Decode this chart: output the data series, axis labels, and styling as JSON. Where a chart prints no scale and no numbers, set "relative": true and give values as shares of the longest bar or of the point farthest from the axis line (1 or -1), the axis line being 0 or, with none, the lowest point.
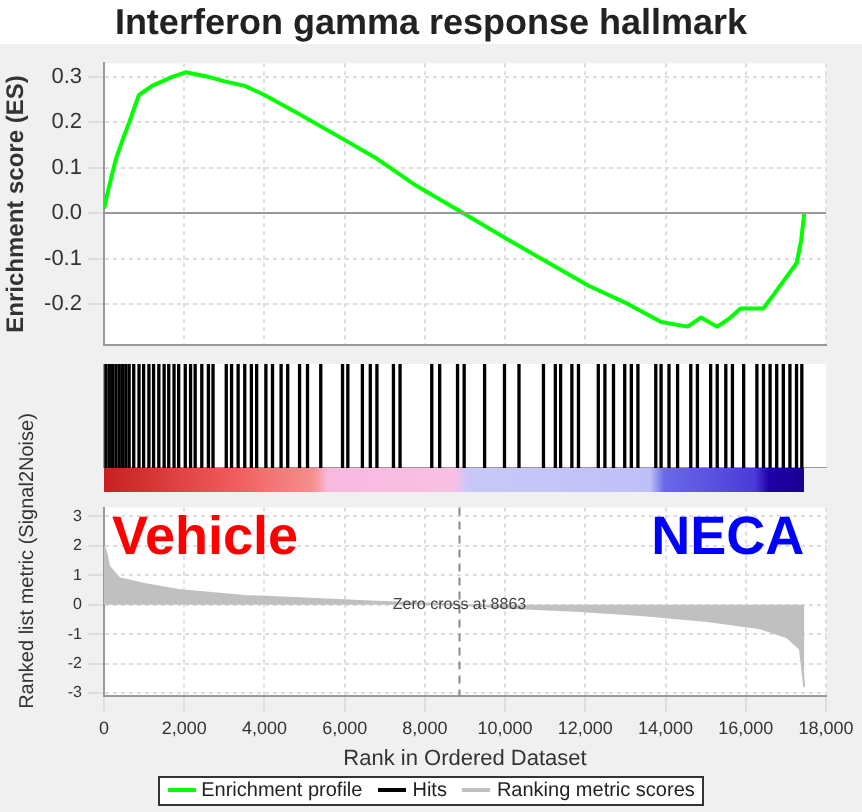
{
  "chart_data": [
    {
      "type": "line",
      "title": "Interferon gamma response hallmark",
      "ylabel": "Enrichment score (ES)",
      "tick_labels": "y",
      "xlim": [
        0,
        18000
      ],
      "xticks": [
        0,
        2000,
        4000,
        6000,
        8000,
        10000,
        12000,
        14000,
        16000,
        18000
      ],
      "ylim": [
        -0.29,
        0.33
      ],
      "yticks": [
        {
          "value": -0.2,
          "label": "-0.2"
        },
        {
          "value": -0.1,
          "label": "-0.1"
        },
        {
          "value": 0,
          "label": "0.0"
        },
        {
          "value": 0.1,
          "label": "0.1"
        },
        {
          "value": 0.2,
          "label": "0.2"
        },
        {
          "value": 0.3,
          "label": "0.3"
        }
      ],
      "grid": true,
      "legend": "bottom",
      "ref_lines": [
        {
          "axis": "y",
          "value": 0,
          "color": "#999999"
        }
      ],
      "series": [
        {
          "name": "Enrichment profile",
          "color": "#00ff00",
          "x": [
            0,
            130,
            300,
            460,
            630,
            870,
            1200,
            1700,
            2030,
            2600,
            3010,
            3510,
            4000,
            4830,
            5820,
            6800,
            7790,
            8950,
            10100,
            11090,
            12080,
            13060,
            13890,
            14550,
            14880,
            15290,
            15620,
            15870,
            16440,
            16690,
            17020,
            17270,
            17380,
            17460
          ],
          "values": [
            0.01,
            0.06,
            0.12,
            0.16,
            0.2,
            0.26,
            0.28,
            0.3,
            0.31,
            0.3,
            0.29,
            0.28,
            0.26,
            0.22,
            0.17,
            0.12,
            0.06,
            0.0,
            -0.06,
            -0.11,
            -0.16,
            -0.2,
            -0.24,
            -0.25,
            -0.23,
            -0.25,
            -0.23,
            -0.21,
            -0.21,
            -0.18,
            -0.14,
            -0.11,
            -0.06,
            0.0
          ]
        }
      ]
    },
    {
      "type": "bar",
      "relative": true,
      "tick_labels": false,
      "xlim": [
        0,
        18000
      ],
      "xticks": [
        0,
        2000,
        4000,
        6000,
        8000,
        10000,
        12000,
        14000,
        16000,
        18000
      ],
      "legend": "bottom",
      "series": [
        {
          "name": "Hits",
          "color": "#000000",
          "x": [
            49,
            132,
            214,
            297,
            379,
            461,
            544,
            626,
            741,
            873,
            988,
            1120,
            1236,
            1367,
            1499,
            1614,
            1746,
            1862,
            2026,
            2158,
            2273,
            2438,
            2603,
            2718,
            3048,
            3180,
            3344,
            3509,
            3674,
            3806,
            4036,
            4201,
            4415,
            4580,
            4876,
            5074,
            5404,
            5947,
            6079,
            6442,
            6639,
            6804,
            7216,
            7381,
            8171,
            8369,
            8814,
            8979,
            9489,
            9984,
            10346,
            10956,
            11252,
            11384,
            11664,
            11829,
            12323,
            12488,
            12702,
            12982,
            13147,
            13311,
            13756,
            13888,
            14086,
            14300,
            14629,
            14794,
            15124,
            15288,
            15502,
            15667,
            15947,
            16277,
            16442,
            16606,
            16771,
            16936,
            17101,
            17265,
            17397
          ],
          "values": [
            1,
            1,
            1,
            1,
            1,
            1,
            1,
            1,
            1,
            1,
            1,
            1,
            1,
            1,
            1,
            1,
            1,
            1,
            1,
            1,
            1,
            1,
            1,
            1,
            1,
            1,
            1,
            1,
            1,
            1,
            1,
            1,
            1,
            1,
            1,
            1,
            1,
            1,
            1,
            1,
            1,
            1,
            1,
            1,
            1,
            1,
            1,
            1,
            1,
            1,
            1,
            1,
            1,
            1,
            1,
            1,
            1,
            1,
            1,
            1,
            1,
            1,
            1,
            1,
            1,
            1,
            1,
            1,
            1,
            1,
            1,
            1,
            1,
            1,
            1,
            1,
            1,
            1,
            1,
            1,
            1
          ]
        }
      ]
    },
    {
      "type": "area",
      "xlabel": "Rank in Ordered Dataset",
      "ylabel": "Ranked list metric (Signal2Noise)",
      "xlim": [
        0,
        18000
      ],
      "xticks": [
        0,
        {
          "value": 2000,
          "label": "2,000"
        },
        {
          "value": 4000,
          "label": "4,000"
        },
        {
          "value": 6000,
          "label": "6,000"
        },
        {
          "value": 8000,
          "label": "8,000"
        },
        {
          "value": 10000,
          "label": "10,000"
        },
        {
          "value": 12000,
          "label": "12,000"
        },
        {
          "value": 14000,
          "label": "14,000"
        },
        {
          "value": 16000,
          "label": "16,000"
        },
        {
          "value": 18000,
          "label": "18,000"
        }
      ],
      "ylim": [
        -3.1,
        3.3
      ],
      "yticks": [
        -3,
        -2,
        -1,
        0,
        1,
        2,
        3
      ],
      "grid": true,
      "legend": "bottom",
      "ref_lines": [
        {
          "axis": "x",
          "value": 8863,
          "label": "Zero cross at 8863",
          "line_style": "dashed",
          "color": "#888888"
        }
      ],
      "annotations": [
        "Vehicle",
        "NECA"
      ],
      "series": [
        {
          "name": "Ranking metric scores",
          "color": "#c0c0c0",
          "x": [
            0,
            50,
            130,
            380,
            1040,
            1860,
            3510,
            5160,
            6800,
            8863,
            10100,
            11750,
            13390,
            15040,
            16360,
            17020,
            17350,
            17460
          ],
          "values": [
            2.0,
            1.8,
            1.3,
            0.9,
            0.7,
            0.5,
            0.3,
            0.2,
            0.1,
            0,
            -0.1,
            -0.2,
            -0.35,
            -0.55,
            -0.8,
            -1.1,
            -1.5,
            -2.8
          ]
        }
      ]
    }
  ]
}
